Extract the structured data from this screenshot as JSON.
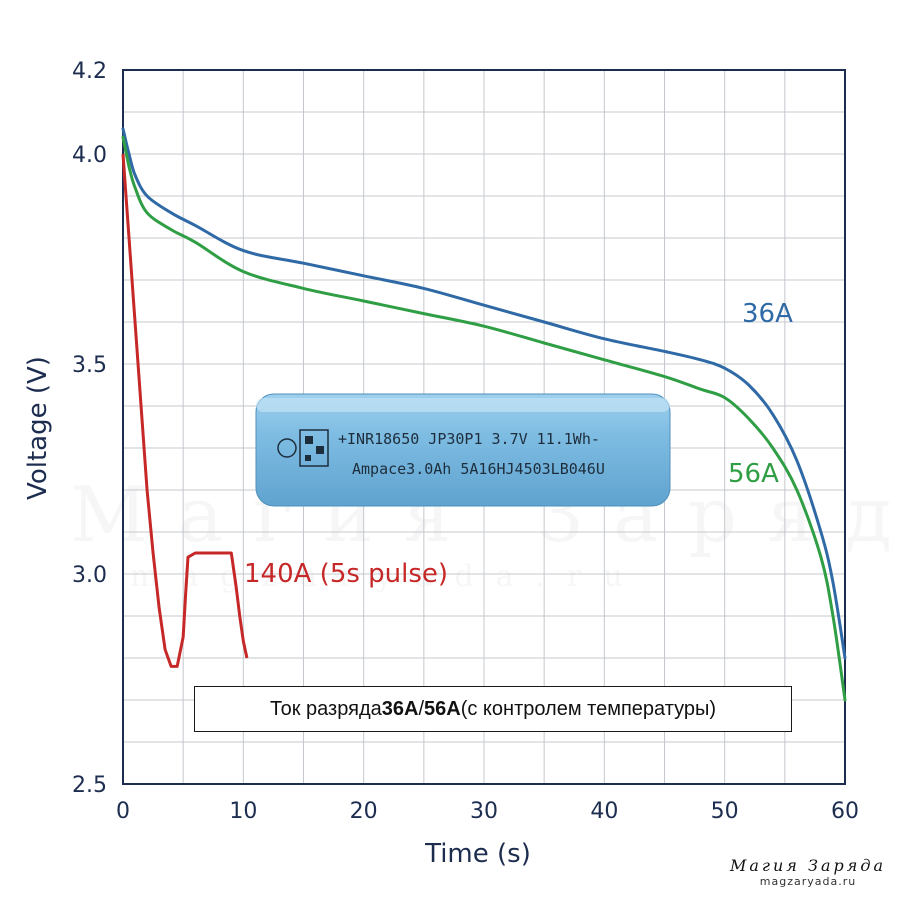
{
  "chart_data": {
    "type": "line",
    "title": "",
    "xlabel": "Time (s)",
    "ylabel": "Voltage (V)",
    "xlim": [
      0,
      60
    ],
    "ylim": [
      2.5,
      4.2
    ],
    "x_ticks": [
      0,
      10,
      20,
      30,
      40,
      50,
      60
    ],
    "y_ticks": [
      2.5,
      3.0,
      3.5,
      4.0,
      4.2
    ],
    "y_tick_labels": [
      "2.5",
      "3.0",
      "3.5",
      "4.0",
      "4.2"
    ],
    "grid": true,
    "series": [
      {
        "name": "36A",
        "color": "#2f6aa6",
        "x": [
          0,
          0.5,
          1,
          2,
          4,
          6,
          10,
          15,
          20,
          25,
          30,
          35,
          40,
          45,
          48,
          50,
          52,
          54,
          56,
          58,
          59,
          60
        ],
        "y": [
          4.06,
          4.0,
          3.95,
          3.9,
          3.86,
          3.83,
          3.77,
          3.74,
          3.71,
          3.68,
          3.64,
          3.6,
          3.56,
          3.53,
          3.51,
          3.49,
          3.45,
          3.38,
          3.27,
          3.1,
          2.98,
          2.8
        ]
      },
      {
        "name": "56A",
        "color": "#2f9e44",
        "x": [
          0,
          0.5,
          1,
          2,
          4,
          6,
          10,
          15,
          20,
          25,
          30,
          35,
          40,
          45,
          48,
          50,
          52,
          54,
          56,
          58,
          59,
          60
        ],
        "y": [
          4.04,
          3.97,
          3.92,
          3.86,
          3.82,
          3.79,
          3.72,
          3.68,
          3.65,
          3.62,
          3.59,
          3.55,
          3.51,
          3.47,
          3.44,
          3.42,
          3.37,
          3.3,
          3.2,
          3.04,
          2.9,
          2.7
        ]
      },
      {
        "name": "140A (5s pulse)",
        "color": "#c62828",
        "x": [
          0,
          0.5,
          1,
          1.5,
          2,
          2.5,
          3,
          3.5,
          4,
          4.5,
          5,
          5.2,
          5.4,
          6,
          8,
          9,
          9.4,
          9.7,
          10,
          10.3
        ],
        "y": [
          4.0,
          3.8,
          3.6,
          3.4,
          3.2,
          3.05,
          2.92,
          2.82,
          2.78,
          2.78,
          2.85,
          2.95,
          3.04,
          3.05,
          3.05,
          3.05,
          2.97,
          2.9,
          2.84,
          2.8
        ]
      }
    ],
    "annotations": [
      "36A",
      "56A",
      "140A (5s pulse)"
    ]
  },
  "cell_image": {
    "line1": "+INR18650 JP30P1 3.7V 11.1Wh-",
    "line2": "Ampace3.0Ah 5A16HJ4503LB046U"
  },
  "note": {
    "part1": "Ток разряда ",
    "bold1": "36А",
    "sep": " / ",
    "bold2": "56А",
    "part2": " (с контролем температуры)"
  },
  "watermark": {
    "text": "Магия Заряда",
    "sub": "magzaryada.ru"
  },
  "brand": {
    "title": "Магия Заряда",
    "url": "magzaryada.ru"
  }
}
